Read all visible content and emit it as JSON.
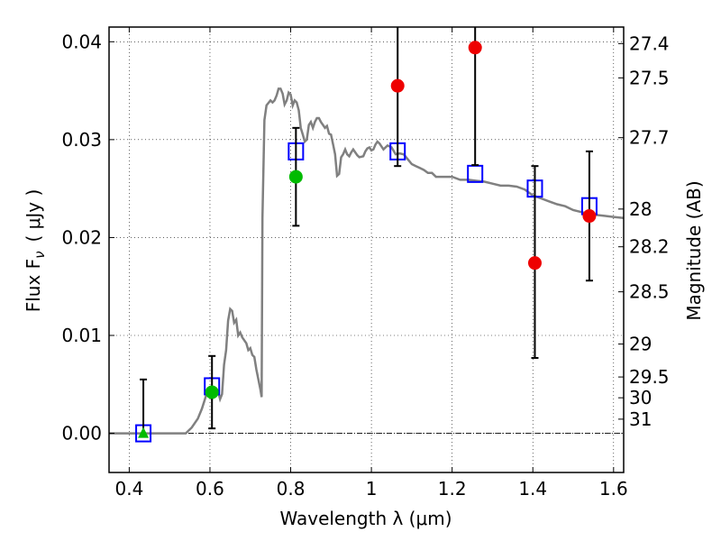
{
  "chart_data": {
    "type": "scatter",
    "title": "",
    "xlabel": "Wavelength  λ (μm)",
    "ylabel": "Flux  F",
    "ylabel_subscript": "ν",
    "ylabel_unit": "( μJy )",
    "y2label": "Magnitude (AB)",
    "xlim": [
      0.35,
      1.625
    ],
    "ylim": [
      -0.004,
      0.0415
    ],
    "grid": true,
    "x_ticks": [
      {
        "value": 0.4,
        "label": "0.4"
      },
      {
        "value": 0.6,
        "label": "0.6"
      },
      {
        "value": 0.8,
        "label": "0.8"
      },
      {
        "value": 1.0,
        "label": "1"
      },
      {
        "value": 1.2,
        "label": "1.2"
      },
      {
        "value": 1.4,
        "label": "1.4"
      },
      {
        "value": 1.6,
        "label": "1.6"
      }
    ],
    "y_ticks": [
      {
        "value": 0.0,
        "label": "0.00"
      },
      {
        "value": 0.01,
        "label": "0.01"
      },
      {
        "value": 0.02,
        "label": "0.02"
      },
      {
        "value": 0.03,
        "label": "0.03"
      },
      {
        "value": 0.04,
        "label": "0.04"
      }
    ],
    "y2_ticks": [
      {
        "value": 27.4,
        "label": "27.4"
      },
      {
        "value": 27.5,
        "label": "27.5"
      },
      {
        "value": 27.7,
        "label": "27.7"
      },
      {
        "value": 28,
        "label": "28"
      },
      {
        "value": 28.2,
        "label": "28.2"
      },
      {
        "value": 28.5,
        "label": "28.5"
      },
      {
        "value": 29,
        "label": "29"
      },
      {
        "value": 29.5,
        "label": "29.5"
      },
      {
        "value": 30,
        "label": "30"
      },
      {
        "value": 31,
        "label": "31"
      }
    ],
    "series": [
      {
        "kind": "line",
        "color": "#808080",
        "points": [
          [
            0.35,
            0.0
          ],
          [
            0.54,
            0.0
          ],
          [
            0.555,
            0.0006
          ],
          [
            0.57,
            0.0015
          ],
          [
            0.58,
            0.0025
          ],
          [
            0.59,
            0.0038
          ],
          [
            0.6,
            0.004
          ],
          [
            0.605,
            0.0035
          ],
          [
            0.61,
            0.004
          ],
          [
            0.62,
            0.0043
          ],
          [
            0.625,
            0.0035
          ],
          [
            0.63,
            0.004
          ],
          [
            0.635,
            0.007
          ],
          [
            0.64,
            0.0085
          ],
          [
            0.645,
            0.0115
          ],
          [
            0.65,
            0.0127
          ],
          [
            0.655,
            0.0125
          ],
          [
            0.66,
            0.0113
          ],
          [
            0.665,
            0.0116
          ],
          [
            0.67,
            0.01
          ],
          [
            0.675,
            0.0103
          ],
          [
            0.68,
            0.0098
          ],
          [
            0.69,
            0.0092
          ],
          [
            0.695,
            0.0085
          ],
          [
            0.7,
            0.0087
          ],
          [
            0.705,
            0.008
          ],
          [
            0.71,
            0.0078
          ],
          [
            0.715,
            0.0065
          ],
          [
            0.72,
            0.0055
          ],
          [
            0.725,
            0.0045
          ],
          [
            0.728,
            0.0037
          ],
          [
            0.73,
            0.022
          ],
          [
            0.735,
            0.032
          ],
          [
            0.74,
            0.0335
          ],
          [
            0.75,
            0.034
          ],
          [
            0.755,
            0.0338
          ],
          [
            0.76,
            0.034
          ],
          [
            0.765,
            0.0345
          ],
          [
            0.77,
            0.0352
          ],
          [
            0.775,
            0.0352
          ],
          [
            0.78,
            0.0347
          ],
          [
            0.785,
            0.0336
          ],
          [
            0.79,
            0.034
          ],
          [
            0.795,
            0.0348
          ],
          [
            0.8,
            0.0346
          ],
          [
            0.805,
            0.0335
          ],
          [
            0.81,
            0.034
          ],
          [
            0.815,
            0.0338
          ],
          [
            0.82,
            0.033
          ],
          [
            0.825,
            0.0312
          ],
          [
            0.83,
            0.0305
          ],
          [
            0.835,
            0.0298
          ],
          [
            0.84,
            0.03
          ],
          [
            0.845,
            0.0315
          ],
          [
            0.85,
            0.0318
          ],
          [
            0.855,
            0.0312
          ],
          [
            0.86,
            0.0318
          ],
          [
            0.865,
            0.0322
          ],
          [
            0.87,
            0.0322
          ],
          [
            0.875,
            0.0318
          ],
          [
            0.88,
            0.0315
          ],
          [
            0.885,
            0.0312
          ],
          [
            0.89,
            0.0314
          ],
          [
            0.895,
            0.0306
          ],
          [
            0.9,
            0.0305
          ],
          [
            0.905,
            0.0295
          ],
          [
            0.91,
            0.0285
          ],
          [
            0.915,
            0.0263
          ],
          [
            0.92,
            0.0265
          ],
          [
            0.925,
            0.0282
          ],
          [
            0.93,
            0.0285
          ],
          [
            0.935,
            0.029
          ],
          [
            0.94,
            0.0285
          ],
          [
            0.945,
            0.0283
          ],
          [
            0.95,
            0.0287
          ],
          [
            0.955,
            0.029
          ],
          [
            0.96,
            0.0287
          ],
          [
            0.965,
            0.0284
          ],
          [
            0.97,
            0.0282
          ],
          [
            0.98,
            0.0283
          ],
          [
            0.985,
            0.0288
          ],
          [
            0.99,
            0.0291
          ],
          [
            0.995,
            0.0292
          ],
          [
            1.0,
            0.0289
          ],
          [
            1.005,
            0.029
          ],
          [
            1.01,
            0.0295
          ],
          [
            1.015,
            0.0298
          ],
          [
            1.02,
            0.0296
          ],
          [
            1.03,
            0.029
          ],
          [
            1.04,
            0.0294
          ],
          [
            1.05,
            0.0292
          ],
          [
            1.06,
            0.0285
          ],
          [
            1.07,
            0.0286
          ],
          [
            1.08,
            0.0285
          ],
          [
            1.09,
            0.028
          ],
          [
            1.1,
            0.0275
          ],
          [
            1.11,
            0.0273
          ],
          [
            1.12,
            0.0271
          ],
          [
            1.13,
            0.0269
          ],
          [
            1.14,
            0.0266
          ],
          [
            1.15,
            0.0266
          ],
          [
            1.16,
            0.0262
          ],
          [
            1.18,
            0.0262
          ],
          [
            1.2,
            0.0262
          ],
          [
            1.22,
            0.0259
          ],
          [
            1.24,
            0.0259
          ],
          [
            1.26,
            0.0258
          ],
          [
            1.28,
            0.0257
          ],
          [
            1.3,
            0.0255
          ],
          [
            1.32,
            0.0253
          ],
          [
            1.34,
            0.0253
          ],
          [
            1.36,
            0.0252
          ],
          [
            1.38,
            0.0249
          ],
          [
            1.4,
            0.0243
          ],
          [
            1.42,
            0.024
          ],
          [
            1.44,
            0.0237
          ],
          [
            1.46,
            0.0234
          ],
          [
            1.48,
            0.0232
          ],
          [
            1.5,
            0.0228
          ],
          [
            1.52,
            0.0226
          ],
          [
            1.54,
            0.0224
          ],
          [
            1.56,
            0.0223
          ],
          [
            1.58,
            0.0222
          ],
          [
            1.6,
            0.0221
          ],
          [
            1.625,
            0.022
          ]
        ]
      },
      {
        "kind": "model_points",
        "marker": "open-square",
        "color": "#0000ff",
        "points": [
          [
            0.435,
            0.0
          ],
          [
            0.605,
            0.0048
          ],
          [
            0.813,
            0.0288
          ],
          [
            1.065,
            0.0288
          ],
          [
            1.257,
            0.0265
          ],
          [
            1.405,
            0.025
          ],
          [
            1.54,
            0.0232
          ]
        ]
      },
      {
        "kind": "observed",
        "color": "#00bb00",
        "points": [
          {
            "x": 0.435,
            "y": 0.0,
            "yerr_low": 0.0,
            "yerr_high": 0.0055,
            "marker": "triangle"
          },
          {
            "x": 0.605,
            "y": 0.0042,
            "yerr_low": 0.0037,
            "yerr_high": 0.0037,
            "marker": "circle"
          },
          {
            "x": 0.813,
            "y": 0.0262,
            "yerr_low": 0.005,
            "yerr_high": 0.005,
            "marker": "circle"
          }
        ]
      },
      {
        "kind": "observed",
        "color": "#ee0000",
        "points": [
          {
            "x": 1.065,
            "y": 0.0355,
            "yerr_low": 0.0082,
            "yerr_high": 0.0082,
            "marker": "circle"
          },
          {
            "x": 1.257,
            "y": 0.0394,
            "yerr_low": 0.012,
            "yerr_high": 0.012,
            "marker": "circle"
          },
          {
            "x": 1.405,
            "y": 0.0174,
            "yerr_low": 0.0097,
            "yerr_high": 0.0099,
            "marker": "circle"
          },
          {
            "x": 1.54,
            "y": 0.0222,
            "yerr_low": 0.0066,
            "yerr_high": 0.0066,
            "marker": "circle"
          }
        ]
      }
    ]
  }
}
